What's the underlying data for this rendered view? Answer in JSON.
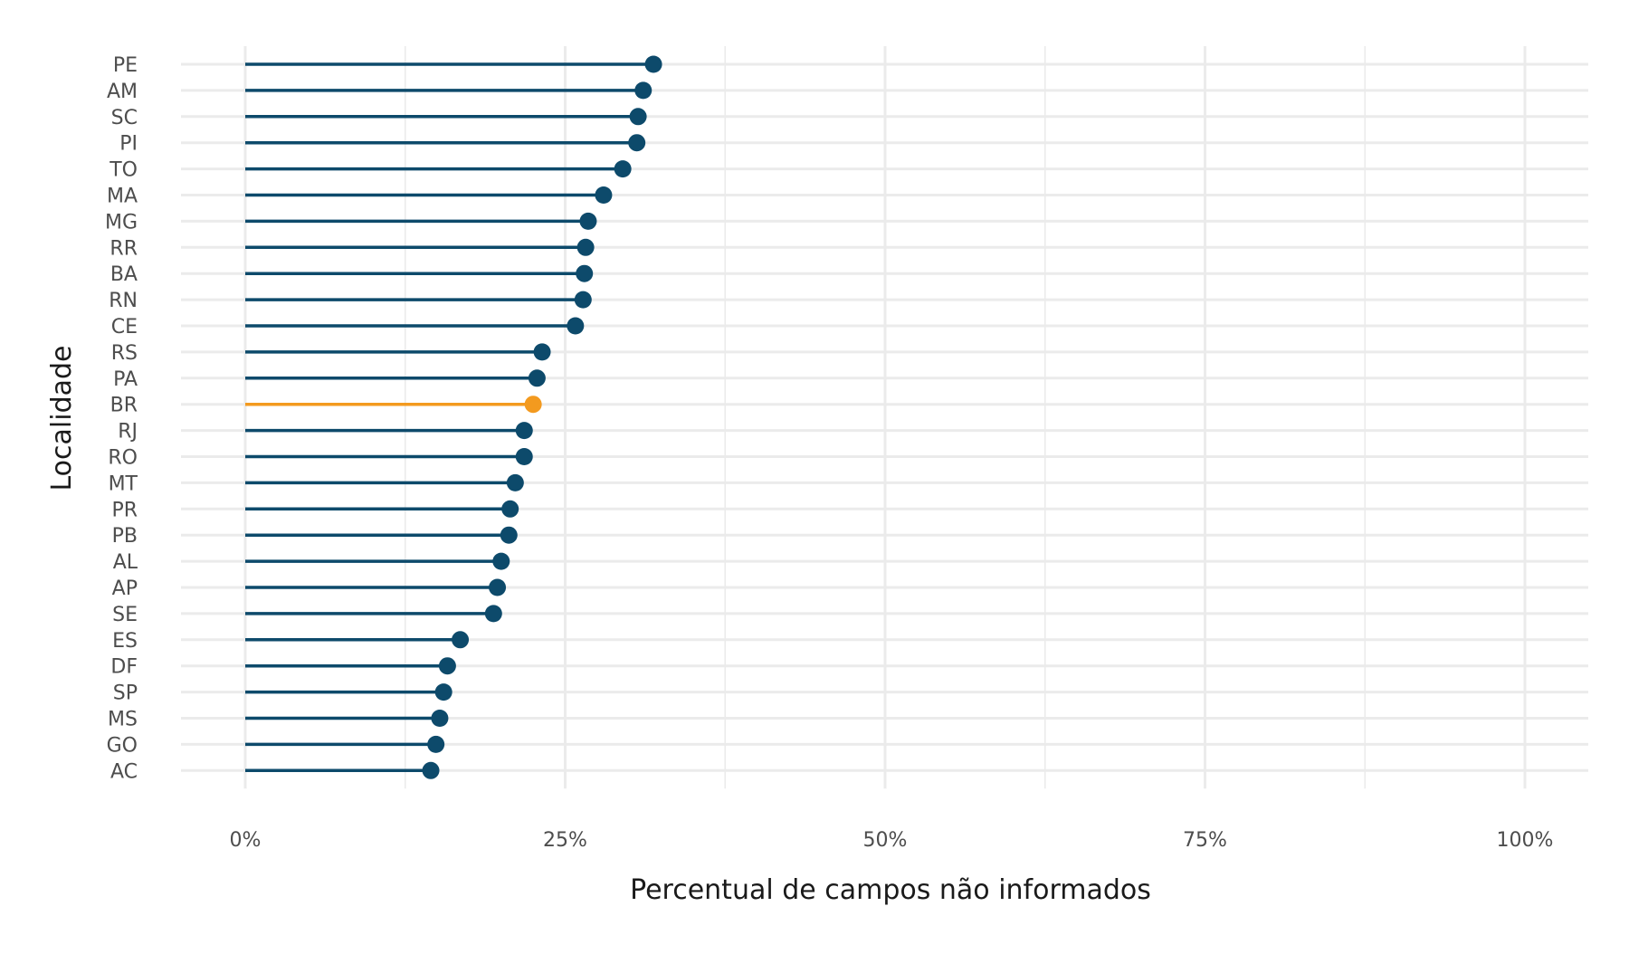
{
  "chart_data": {
    "type": "lollipop",
    "xlabel": "Percentual de campos não informados",
    "ylabel": "Localidade",
    "xlim": [
      -0.05,
      1.05
    ],
    "x_ticks": [
      0,
      0.25,
      0.5,
      0.75,
      1.0
    ],
    "x_tick_labels": [
      "0%",
      "25%",
      "50%",
      "75%",
      "100%"
    ],
    "grid": true,
    "legend": "none",
    "colors": {
      "default": "#0d4a6b",
      "highlight": "#f39a1f",
      "grid": "#ebebeb"
    },
    "highlight_category": "BR",
    "categories": [
      "PE",
      "AM",
      "SC",
      "PI",
      "TO",
      "MA",
      "MG",
      "RR",
      "BA",
      "RN",
      "CE",
      "RS",
      "PA",
      "BR",
      "RJ",
      "RO",
      "MT",
      "PR",
      "PB",
      "AL",
      "AP",
      "SE",
      "ES",
      "DF",
      "SP",
      "MS",
      "GO",
      "AC"
    ],
    "values": [
      0.319,
      0.311,
      0.307,
      0.306,
      0.295,
      0.28,
      0.268,
      0.266,
      0.265,
      0.264,
      0.258,
      0.232,
      0.228,
      0.225,
      0.218,
      0.218,
      0.211,
      0.207,
      0.206,
      0.2,
      0.197,
      0.194,
      0.168,
      0.158,
      0.155,
      0.152,
      0.149,
      0.145
    ]
  }
}
